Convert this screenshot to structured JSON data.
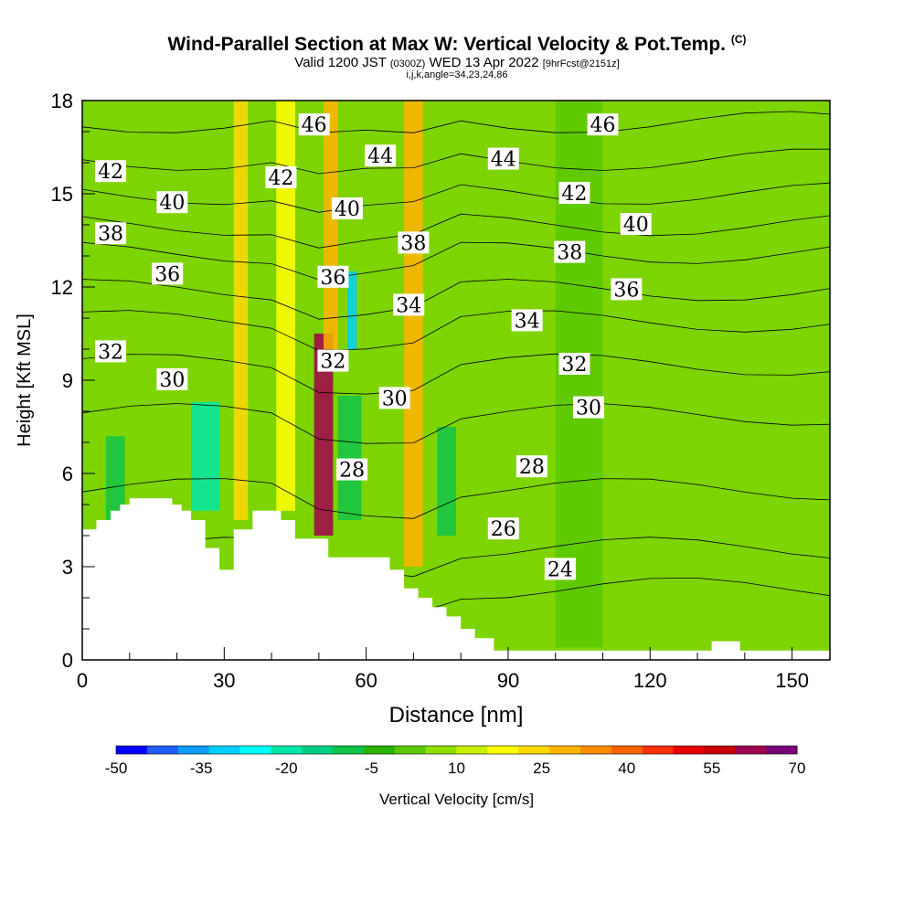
{
  "titles": {
    "main": "Wind-Parallel Section at Max W: Vertical Velocity & Pot.Temp.",
    "main_unit": "(C)",
    "valid_a": "Valid 1200 JST",
    "valid_utc": "(0300Z)",
    "valid_b": "WED 13 Apr 2022",
    "forecast": "[9hrFcst@2151z]",
    "indices": "i,j,k,angle=34,23,24,86"
  },
  "colors": {
    "palette": [
      "#0000ff",
      "#1e5cff",
      "#0f9cff",
      "#00cdff",
      "#00ffff",
      "#00e6a8",
      "#00cd84",
      "#10c448",
      "#28b400",
      "#5ac800",
      "#8ee000",
      "#c6f000",
      "#ffff00",
      "#ffd800",
      "#ffb400",
      "#ff8c00",
      "#ff6400",
      "#ff3000",
      "#e60000",
      "#c80000",
      "#a00050",
      "#780078"
    ],
    "background_field": "#7dd400",
    "terrain": "#ffffff",
    "contour": "#000000"
  },
  "chart_data": {
    "type": "heatmap",
    "xlabel": "Distance [nm]",
    "ylabel": "Height [Kft MSL]",
    "xlim": [
      0,
      158
    ],
    "ylim": [
      0,
      18
    ],
    "xticks": [
      0,
      30,
      60,
      90,
      120,
      150
    ],
    "yticks": [
      0,
      3,
      6,
      9,
      12,
      15,
      18
    ],
    "colorbar": {
      "label": "Vertical Velocity [cm/s]",
      "ticks": [
        -50,
        -35,
        -20,
        -5,
        10,
        25,
        40,
        55,
        70
      ],
      "min": -50,
      "max": 70,
      "step": 5
    },
    "terrain": [
      [
        0,
        4.2
      ],
      [
        3,
        4.2
      ],
      [
        3,
        4.5
      ],
      [
        6,
        4.5
      ],
      [
        6,
        4.8
      ],
      [
        8,
        4.8
      ],
      [
        8,
        5.0
      ],
      [
        10,
        5.0
      ],
      [
        10,
        5.2
      ],
      [
        19,
        5.2
      ],
      [
        19,
        5.0
      ],
      [
        21,
        5.0
      ],
      [
        21,
        4.8
      ],
      [
        23,
        4.8
      ],
      [
        23,
        4.5
      ],
      [
        26,
        4.5
      ],
      [
        26,
        3.6
      ],
      [
        29,
        3.6
      ],
      [
        29,
        2.9
      ],
      [
        32,
        2.9
      ],
      [
        32,
        4.2
      ],
      [
        36,
        4.2
      ],
      [
        36,
        4.8
      ],
      [
        42,
        4.8
      ],
      [
        42,
        4.5
      ],
      [
        45,
        4.5
      ],
      [
        45,
        3.9
      ],
      [
        52,
        3.9
      ],
      [
        52,
        3.3
      ],
      [
        65,
        3.3
      ],
      [
        65,
        2.9
      ],
      [
        68,
        2.9
      ],
      [
        68,
        2.3
      ],
      [
        71,
        2.3
      ],
      [
        71,
        2.0
      ],
      [
        74,
        2.0
      ],
      [
        74,
        1.7
      ],
      [
        77,
        1.7
      ],
      [
        77,
        1.4
      ],
      [
        80,
        1.4
      ],
      [
        80,
        1.0
      ],
      [
        83,
        1.0
      ],
      [
        83,
        0.7
      ],
      [
        87,
        0.7
      ],
      [
        87,
        0.3
      ],
      [
        133,
        0.3
      ],
      [
        133,
        0.6
      ],
      [
        139,
        0.6
      ],
      [
        139,
        0.3
      ],
      [
        158,
        0.3
      ]
    ],
    "bands": [
      {
        "x": 5,
        "w": 4,
        "y0": 4.5,
        "y1": 7.2,
        "w_cms": -12
      },
      {
        "x": 23,
        "w": 6,
        "y0": 4.8,
        "y1": 8.3,
        "w_cms": -22
      },
      {
        "x": 32,
        "w": 3,
        "y0": 4.5,
        "y1": 18,
        "w_cms": 15
      },
      {
        "x": 41,
        "w": 4,
        "y0": 4.8,
        "y1": 18,
        "w_cms": 12
      },
      {
        "x": 49,
        "w": 4,
        "y0": 4.0,
        "y1": 10.5,
        "w_cms": 50
      },
      {
        "x": 51,
        "w": 3,
        "y0": 10,
        "y1": 18,
        "w_cms": 20
      },
      {
        "x": 54,
        "w": 5,
        "y0": 4.5,
        "y1": 8.5,
        "w_cms": -15
      },
      {
        "x": 56,
        "w": 2,
        "y0": 10,
        "y1": 12.5,
        "w_cms": -35
      },
      {
        "x": 68,
        "w": 4,
        "y0": 3.0,
        "y1": 18,
        "w_cms": 20
      },
      {
        "x": 75,
        "w": 4,
        "y0": 4.0,
        "y1": 7.5,
        "w_cms": -15
      },
      {
        "x": 100,
        "w": 10,
        "y0": 0.4,
        "y1": 18,
        "w_cms": -5
      }
    ],
    "isentropes": [
      24,
      26,
      28,
      30,
      32,
      34,
      36,
      38,
      40,
      42,
      44,
      46
    ],
    "contour_labels": [
      {
        "x": 49,
        "y": 17.2,
        "text": "46"
      },
      {
        "x": 110,
        "y": 17.2,
        "text": "46"
      },
      {
        "x": 6,
        "y": 15.7,
        "text": "42"
      },
      {
        "x": 42,
        "y": 15.5,
        "text": "42"
      },
      {
        "x": 63,
        "y": 16.2,
        "text": "44"
      },
      {
        "x": 89,
        "y": 16.1,
        "text": "44"
      },
      {
        "x": 19,
        "y": 14.7,
        "text": "40"
      },
      {
        "x": 56,
        "y": 14.5,
        "text": "40"
      },
      {
        "x": 104,
        "y": 15.0,
        "text": "42"
      },
      {
        "x": 6,
        "y": 13.7,
        "text": "38"
      },
      {
        "x": 70,
        "y": 13.4,
        "text": "38"
      },
      {
        "x": 117,
        "y": 14.0,
        "text": "40"
      },
      {
        "x": 18,
        "y": 12.4,
        "text": "36"
      },
      {
        "x": 53,
        "y": 12.3,
        "text": "36"
      },
      {
        "x": 103,
        "y": 13.1,
        "text": "38"
      },
      {
        "x": 69,
        "y": 11.4,
        "text": "34"
      },
      {
        "x": 115,
        "y": 11.9,
        "text": "36"
      },
      {
        "x": 94,
        "y": 10.9,
        "text": "34"
      },
      {
        "x": 6,
        "y": 9.9,
        "text": "32"
      },
      {
        "x": 53,
        "y": 9.6,
        "text": "32"
      },
      {
        "x": 104,
        "y": 9.5,
        "text": "32"
      },
      {
        "x": 19,
        "y": 9.0,
        "text": "30"
      },
      {
        "x": 66,
        "y": 8.4,
        "text": "30"
      },
      {
        "x": 107,
        "y": 8.1,
        "text": "30"
      },
      {
        "x": 57,
        "y": 6.1,
        "text": "28"
      },
      {
        "x": 95,
        "y": 6.2,
        "text": "28"
      },
      {
        "x": 89,
        "y": 4.2,
        "text": "26"
      },
      {
        "x": 101,
        "y": 2.9,
        "text": "24"
      }
    ]
  }
}
